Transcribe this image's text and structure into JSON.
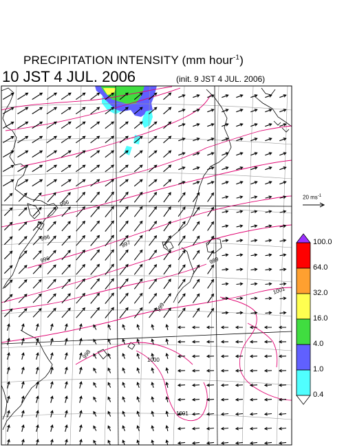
{
  "header": {
    "title_main": "PRECIPITATION INTENSITY (mm hour",
    "title_exp": "-1",
    "title_close": ")",
    "valid_time": "10 JST 4 JUL. 2006",
    "init_time": "(init. 9 JST 4 JUL. 2006)"
  },
  "vector_scale": {
    "label_main": "20 ms",
    "label_exp": "-1"
  },
  "colorbar": {
    "levels": [
      "100.0",
      "64.0",
      "32.0",
      "16.0",
      "4.0",
      "1.0",
      "0.4"
    ],
    "colors": [
      "#9b30ff",
      "#ff0000",
      "#ffa030",
      "#ffff50",
      "#40dd40",
      "#6060ff",
      "#50ffff",
      "#ffffff"
    ]
  },
  "isobar_labels": [
    "996",
    "996",
    "996",
    "997",
    "999",
    "998",
    "1000",
    "1001",
    "1001",
    "999"
  ],
  "colors": {
    "isobar": "#e00070",
    "coast": "#000000",
    "grid": "#999999",
    "arrow": "#000000"
  }
}
